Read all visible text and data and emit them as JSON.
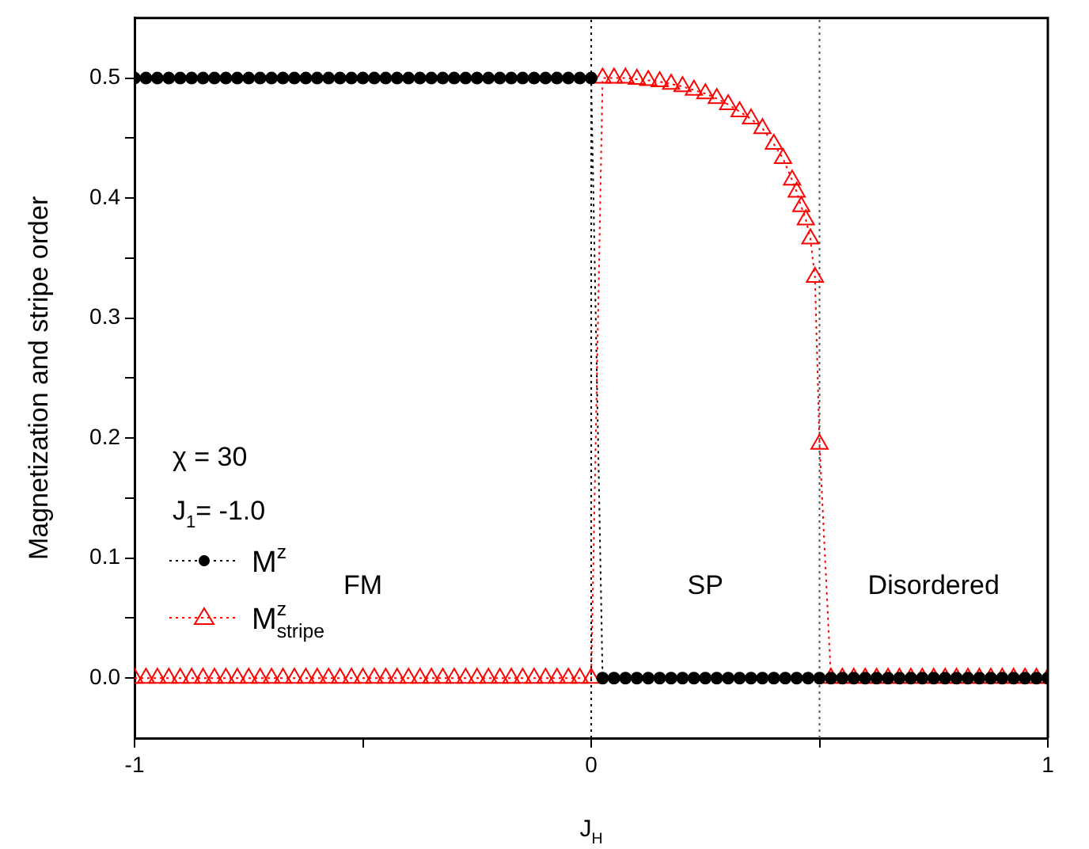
{
  "chart_data": {
    "type": "line",
    "xlabel": "J$_{H}$",
    "ylabel": "Magnetization and stripe order",
    "xlim": [
      -1,
      1
    ],
    "ylim": [
      -0.05,
      0.55
    ],
    "xticks": [
      -1,
      {
        "value": -0.5,
        "label": null
      },
      0,
      {
        "value": 0.5,
        "label": null
      },
      1
    ],
    "yticks": [
      {
        "value": 0,
        "label": "0.0"
      },
      {
        "value": 0.05,
        "label": null
      },
      {
        "value": 0.1,
        "label": "0.1"
      },
      {
        "value": 0.15,
        "label": null
      },
      {
        "value": 0.2,
        "label": "0.2"
      },
      {
        "value": 0.25,
        "label": null
      },
      {
        "value": 0.3,
        "label": "0.3"
      },
      {
        "value": 0.35,
        "label": null
      },
      {
        "value": 0.4,
        "label": "0.4"
      },
      {
        "value": 0.45,
        "label": null
      },
      {
        "value": 0.5,
        "label": "0.5"
      }
    ],
    "grid": false,
    "legend": "bottom left",
    "ref_lines": [
      {
        "axis": "x",
        "value": 0,
        "color": "#000000",
        "line_style": "dotted"
      },
      {
        "axis": "x",
        "value": 0.5,
        "color": "#555555",
        "line_style": "dotted"
      }
    ],
    "annotations": [
      "FM",
      "SP",
      "Disordered",
      "χ = 30",
      "J$_{1}$= -1.0"
    ],
    "series": [
      {
        "name": "M$^{z}$",
        "color": "#000000",
        "marker": "circle",
        "line_style": "dotted",
        "x": [
          -1,
          -0.975,
          -0.95,
          -0.925,
          -0.9,
          -0.875,
          -0.85,
          -0.825,
          -0.8,
          -0.775,
          -0.75,
          -0.725,
          -0.7,
          -0.675,
          -0.65,
          -0.625,
          -0.6,
          -0.575,
          -0.55,
          -0.525,
          -0.5,
          -0.475,
          -0.45,
          -0.425,
          -0.4,
          -0.375,
          -0.35,
          -0.325,
          -0.3,
          -0.275,
          -0.25,
          -0.225,
          -0.2,
          -0.175,
          -0.15,
          -0.125,
          -0.1,
          -0.075,
          -0.05,
          -0.025,
          0,
          0.025,
          0.05,
          0.075,
          0.1,
          0.125,
          0.15,
          0.175,
          0.2,
          0.225,
          0.25,
          0.275,
          0.3,
          0.325,
          0.35,
          0.375,
          0.4,
          0.425,
          0.45,
          0.475,
          0.5,
          0.525,
          0.55,
          0.575,
          0.6,
          0.625,
          0.65,
          0.675,
          0.7,
          0.725,
          0.75,
          0.775,
          0.8,
          0.825,
          0.85,
          0.875,
          0.9,
          0.925,
          0.95,
          0.975,
          1
        ],
        "values": [
          0.5,
          0.5,
          0.5,
          0.5,
          0.5,
          0.5,
          0.5,
          0.5,
          0.5,
          0.5,
          0.5,
          0.5,
          0.5,
          0.5,
          0.5,
          0.5,
          0.5,
          0.5,
          0.5,
          0.5,
          0.5,
          0.5,
          0.5,
          0.5,
          0.5,
          0.5,
          0.5,
          0.5,
          0.5,
          0.5,
          0.5,
          0.5,
          0.5,
          0.5,
          0.5,
          0.5,
          0.5,
          0.5,
          0.5,
          0.5,
          0.5,
          0,
          0,
          0,
          0,
          0,
          0,
          0,
          0,
          0,
          0,
          0,
          0,
          0,
          0,
          0,
          0,
          0,
          0,
          0,
          0,
          0,
          0,
          0,
          0,
          0,
          0,
          0,
          0,
          0,
          0,
          0,
          0,
          0,
          0,
          0,
          0,
          0,
          0,
          0,
          0
        ]
      },
      {
        "name": "M$^{z}$$_{stripe}$",
        "color": "#ff0000",
        "marker": "triangle",
        "line_style": "dotted",
        "x": [
          -1,
          -0.975,
          -0.95,
          -0.925,
          -0.9,
          -0.875,
          -0.85,
          -0.825,
          -0.8,
          -0.775,
          -0.75,
          -0.725,
          -0.7,
          -0.675,
          -0.65,
          -0.625,
          -0.6,
          -0.575,
          -0.55,
          -0.525,
          -0.5,
          -0.475,
          -0.45,
          -0.425,
          -0.4,
          -0.375,
          -0.35,
          -0.325,
          -0.3,
          -0.275,
          -0.25,
          -0.225,
          -0.2,
          -0.175,
          -0.15,
          -0.125,
          -0.1,
          -0.075,
          -0.05,
          -0.025,
          0,
          0.025,
          0.05,
          0.075,
          0.1,
          0.125,
          0.15,
          0.175,
          0.2,
          0.225,
          0.25,
          0.275,
          0.3,
          0.325,
          0.35,
          0.375,
          0.4,
          0.42,
          0.44,
          0.45,
          0.46,
          0.47,
          0.48,
          0.49,
          0.5,
          0.525,
          0.55,
          0.575,
          0.6,
          0.625,
          0.65,
          0.675,
          0.7,
          0.725,
          0.75,
          0.775,
          0.8,
          0.825,
          0.85,
          0.875,
          0.9,
          0.925,
          0.95,
          0.975,
          1
        ],
        "values": [
          0,
          0,
          0,
          0,
          0,
          0,
          0,
          0,
          0,
          0,
          0,
          0,
          0,
          0,
          0,
          0,
          0,
          0,
          0,
          0,
          0,
          0,
          0,
          0,
          0,
          0,
          0,
          0,
          0,
          0,
          0,
          0,
          0,
          0,
          0,
          0,
          0,
          0,
          0,
          0,
          0,
          0.5,
          0.5,
          0.5,
          0.499,
          0.498,
          0.497,
          0.495,
          0.493,
          0.49,
          0.487,
          0.483,
          0.478,
          0.472,
          0.466,
          0.458,
          0.445,
          0.433,
          0.415,
          0.405,
          0.393,
          0.382,
          0.366,
          0.334,
          0.195,
          0,
          0,
          0,
          0,
          0,
          0,
          0,
          0,
          0,
          0,
          0,
          0,
          0,
          0,
          0,
          0,
          0,
          0,
          0,
          0
        ]
      }
    ]
  }
}
